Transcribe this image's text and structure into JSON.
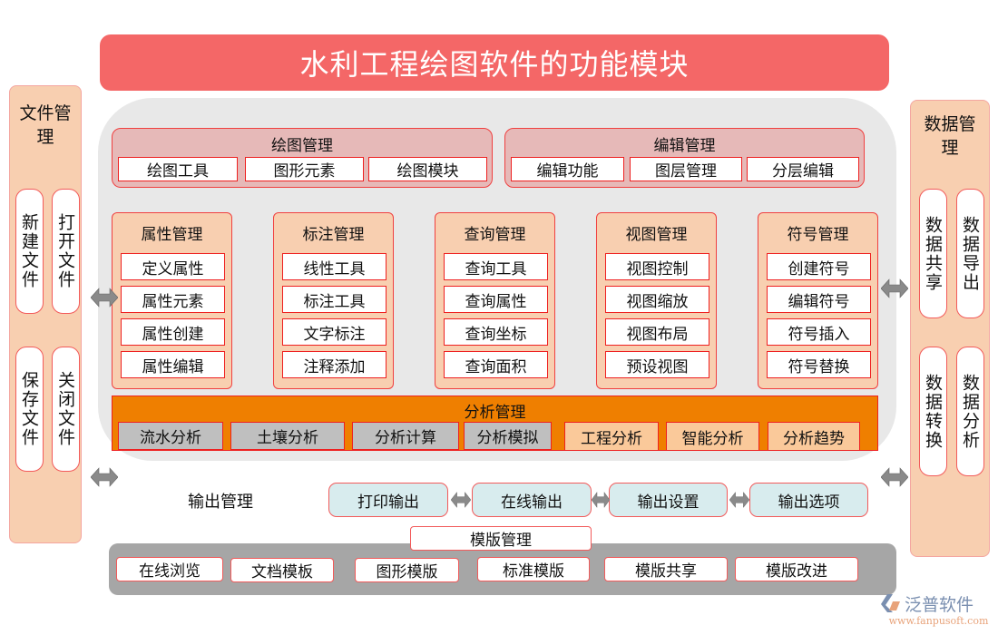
{
  "title": "水利工程绘图软件的功能模块",
  "file_mgmt": {
    "title": "文件管理",
    "items": [
      "新建文件",
      "打开文件",
      "保存文件",
      "关闭文件"
    ]
  },
  "data_mgmt": {
    "title": "数据管理",
    "items": [
      "数据共享",
      "数据导出",
      "数据转换",
      "数据分析"
    ]
  },
  "drawing": {
    "title": "绘图管理",
    "items": [
      "绘图工具",
      "图形元素",
      "绘图模块"
    ]
  },
  "editing": {
    "title": "编辑管理",
    "items": [
      "编辑功能",
      "图层管理",
      "分层编辑"
    ]
  },
  "columns": [
    {
      "title": "属性管理",
      "items": [
        "定义属性",
        "属性元素",
        "属性创建",
        "属性编辑"
      ]
    },
    {
      "title": "标注管理",
      "items": [
        "线性工具",
        "标注工具",
        "文字标注",
        "注释添加"
      ]
    },
    {
      "title": "查询管理",
      "items": [
        "查询工具",
        "查询属性",
        "查询坐标",
        "查询面积"
      ]
    },
    {
      "title": "视图管理",
      "items": [
        "视图控制",
        "视图缩放",
        "视图布局",
        "预设视图"
      ]
    },
    {
      "title": "符号管理",
      "items": [
        "创建符号",
        "编辑符号",
        "符号插入",
        "符号替换"
      ]
    }
  ],
  "analysis": {
    "title": "分析管理",
    "items": [
      "流水分析",
      "土壤分析",
      "分析计算",
      "分析模拟",
      "工程分析",
      "智能分析",
      "分析趋势"
    ]
  },
  "output": {
    "title": "输出管理",
    "items": [
      "打印输出",
      "在线输出",
      "输出设置",
      "输出选项"
    ]
  },
  "template": {
    "title": "模版管理",
    "items": [
      "在线浏览",
      "文档模板",
      "图形模版",
      "标准模版",
      "模版共享",
      "模版改进"
    ]
  },
  "logo": {
    "name": "泛普软件",
    "url": "www.fanpusoft.com"
  },
  "colors": {
    "title": "#f46767",
    "side": "#f8cfb0",
    "analysis": "#ef7f00",
    "output": "#d8ecee",
    "border": "#ee2020"
  }
}
